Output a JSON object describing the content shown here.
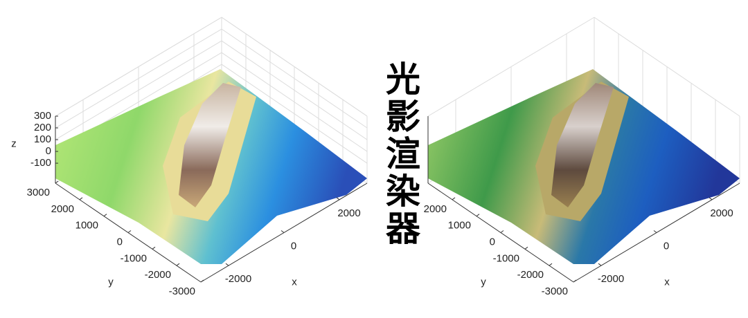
{
  "title": "光影渲染器",
  "chart_data": [
    {
      "type": "surface3d",
      "xlim": [
        -3000,
        3000
      ],
      "ylim": [
        -3000,
        3000
      ],
      "zlim": [
        -270,
        300
      ],
      "xticks": [
        -2000,
        0,
        2000
      ],
      "yticks": [
        -3000,
        -2000,
        -1000,
        0,
        1000,
        2000,
        3000
      ],
      "zticks": [
        -100,
        0,
        100,
        200,
        300
      ],
      "xlabel": "x",
      "ylabel": "y",
      "zlabel": "z",
      "grid": true
    },
    {
      "type": "surface3d",
      "xlim": [
        -3000,
        3000
      ],
      "ylim": [
        -3000,
        3000
      ],
      "zlim": [
        -270,
        300
      ],
      "xticks": [
        -2000,
        0,
        2000
      ],
      "yticks": [
        -3000,
        -2000,
        -1000,
        0,
        1000,
        2000
      ],
      "xlabel": "x",
      "ylabel": "y",
      "grid": true
    }
  ]
}
